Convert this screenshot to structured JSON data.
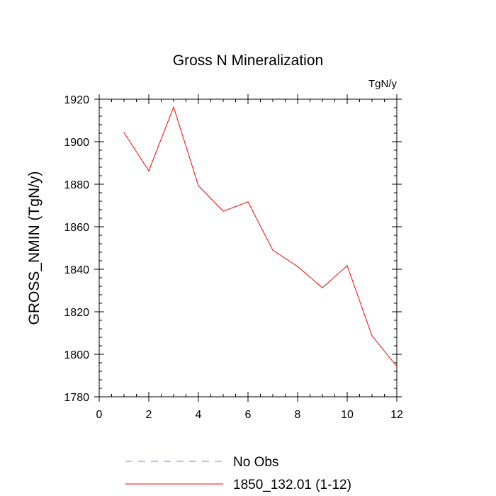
{
  "chart_data": {
    "type": "line",
    "title": "Gross N Mineralization",
    "units_label": "TgN/y",
    "ylabel": "GROSS_NMIN  (TgN/y)",
    "xlabel": "",
    "xlim": [
      0,
      12
    ],
    "ylim": [
      1780,
      1920
    ],
    "xticks": [
      0,
      2,
      4,
      6,
      8,
      10,
      12
    ],
    "yticks": [
      1780,
      1800,
      1820,
      1840,
      1860,
      1880,
      1900,
      1920
    ],
    "grid": false,
    "legend_position": "bottom-center",
    "series": [
      {
        "name": "1850_132.01 (1-12)",
        "color": "#ff0000",
        "style": "solid",
        "x": [
          1,
          2,
          3,
          4,
          5,
          6,
          7,
          8,
          9,
          10,
          11,
          12
        ],
        "values": [
          1904.3,
          1886.3,
          1916.3,
          1879.3,
          1867.3,
          1871.7,
          1849,
          1841.3,
          1831.3,
          1841.7,
          1808.7,
          1794.3
        ]
      }
    ],
    "legend": [
      {
        "label": "No Obs",
        "color": "#8080ff",
        "style": "dashed"
      },
      {
        "label": "1850_132.01 (1-12)",
        "color": "#ff0000",
        "style": "solid"
      }
    ]
  }
}
